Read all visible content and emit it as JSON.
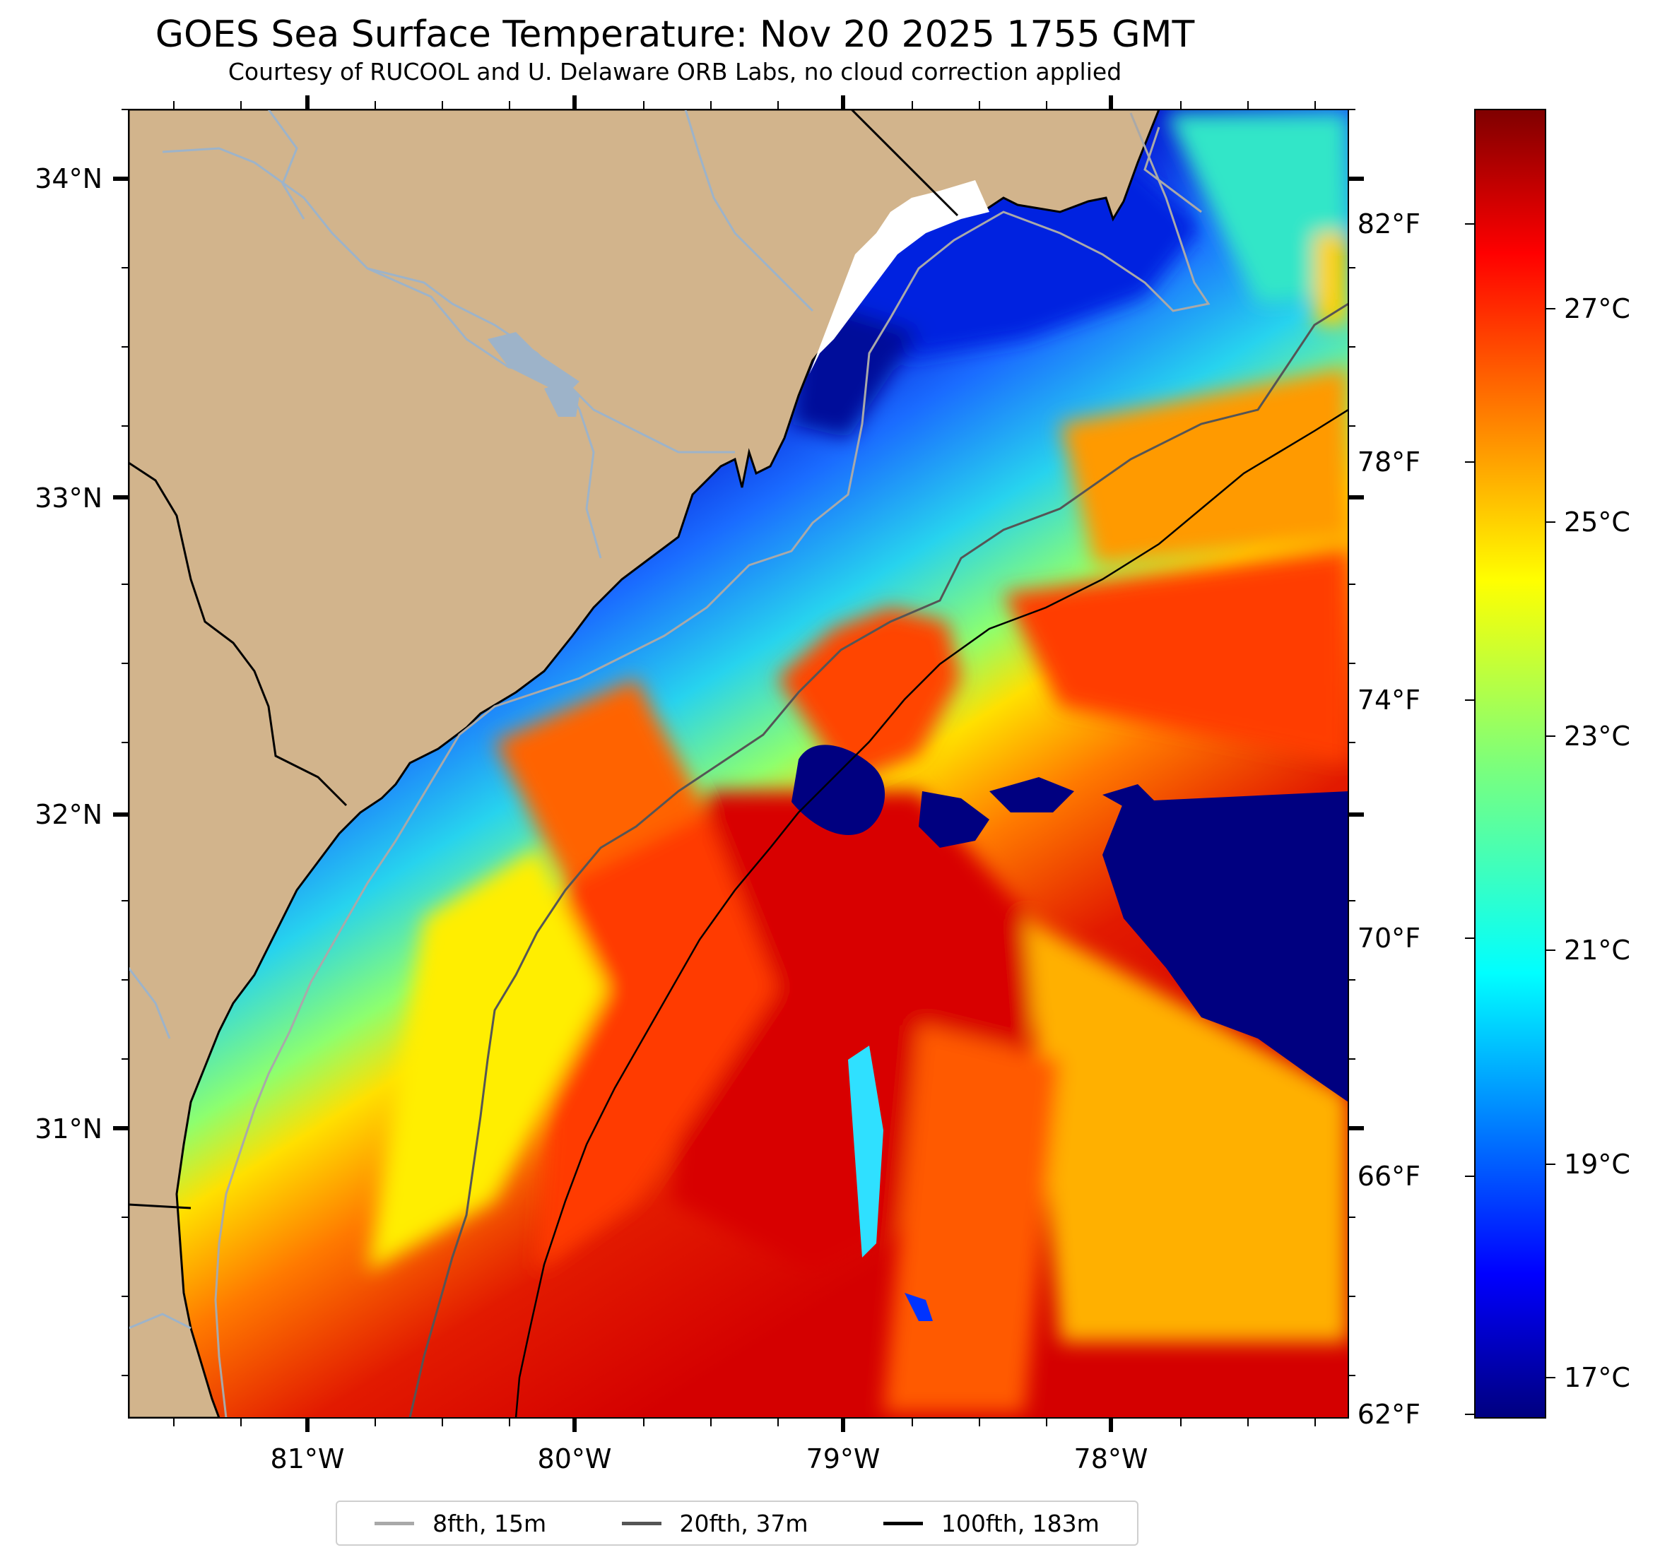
{
  "title": "GOES Sea Surface Temperature: Nov 20 2025 1755 GMT",
  "subtitle": "Courtesy of RUCOOL and U. Delaware ORB Labs, no cloud correction applied",
  "map": {
    "lon_labels": [
      "81°W",
      "80°W",
      "79°W",
      "78°W"
    ],
    "lat_labels": [
      "34°N",
      "33°N",
      "32°N",
      "31°N"
    ],
    "land_color": "#d2b48c",
    "river_color": "#9db3c9",
    "colormap": "jet"
  },
  "colorbar": {
    "fahrenheit_labels": [
      "82°F",
      "78°F",
      "74°F",
      "70°F",
      "66°F",
      "62°F"
    ],
    "celsius_labels": [
      "27°C",
      "25°C",
      "23°C",
      "21°C",
      "19°C",
      "17°C"
    ],
    "range_f": [
      62,
      84
    ]
  },
  "legend": {
    "items": [
      {
        "label": "8fth, 15m",
        "color": "#a9a9a9"
      },
      {
        "label": "20fth, 37m",
        "color": "#555555"
      },
      {
        "label": "100fth, 183m",
        "color": "#000000"
      }
    ]
  }
}
